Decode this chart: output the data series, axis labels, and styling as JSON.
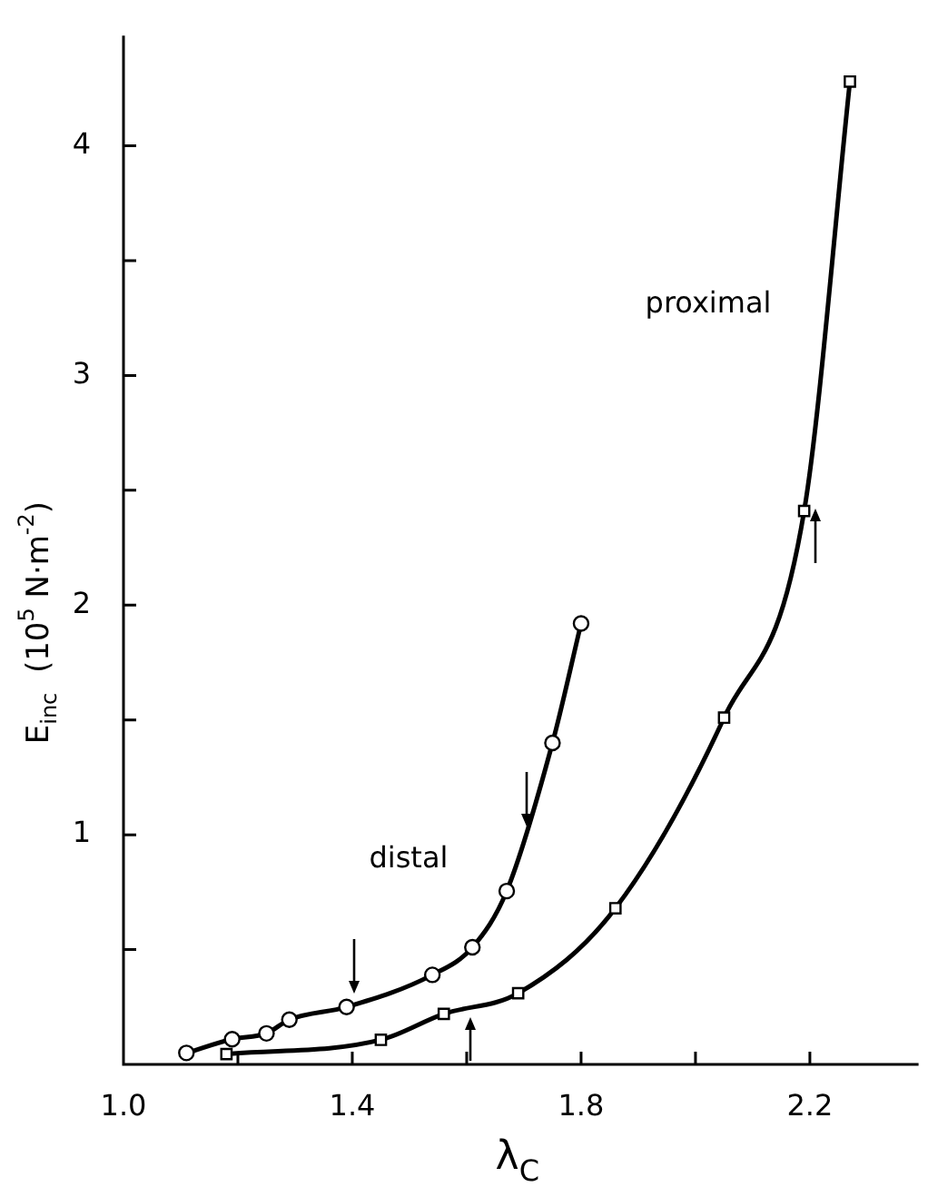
{
  "chart_data": {
    "type": "line",
    "xlabel": "λ$_{C}$",
    "ylabel": "E$_{inc}$  (10$^{5}$ N·m$^{-2}$)",
    "series": [
      {
        "name": "distal",
        "color": "#000000",
        "marker": "circle",
        "x": [
          1.11,
          1.19,
          1.25,
          1.29,
          1.39,
          1.54,
          1.61,
          1.67,
          1.75,
          1.8
        ],
        "values": [
          0.05,
          0.11,
          0.135,
          0.195,
          0.25,
          0.39,
          0.51,
          0.755,
          1.4,
          1.92
        ]
      },
      {
        "name": "proximal",
        "color": "#000000",
        "marker": "square",
        "x": [
          1.18,
          1.45,
          1.56,
          1.69,
          1.86,
          2.05,
          2.19,
          2.27
        ],
        "values": [
          0.045,
          0.107,
          0.22,
          0.31,
          0.68,
          1.51,
          2.41,
          4.28
        ]
      }
    ],
    "xlim": [
      1.0,
      2.39
    ],
    "xticks": [
      {
        "value": 1.0,
        "label": "1.0"
      },
      {
        "value": 1.2,
        "label": null
      },
      {
        "value": 1.4,
        "label": "1.4"
      },
      {
        "value": 1.6,
        "label": null
      },
      {
        "value": 1.8,
        "label": "1.8"
      },
      {
        "value": 2.0,
        "label": null
      },
      {
        "value": 2.2,
        "label": "2.2"
      }
    ],
    "ylim": [
      0,
      4.48
    ],
    "yticks": [
      {
        "value": 0.5,
        "label": null
      },
      1,
      {
        "value": 1.5,
        "label": null
      },
      2,
      {
        "value": 2.5,
        "label": null
      },
      3,
      {
        "value": 3.5,
        "label": null
      },
      4
    ],
    "grid": false,
    "legend": false,
    "line_style": "solid"
  }
}
